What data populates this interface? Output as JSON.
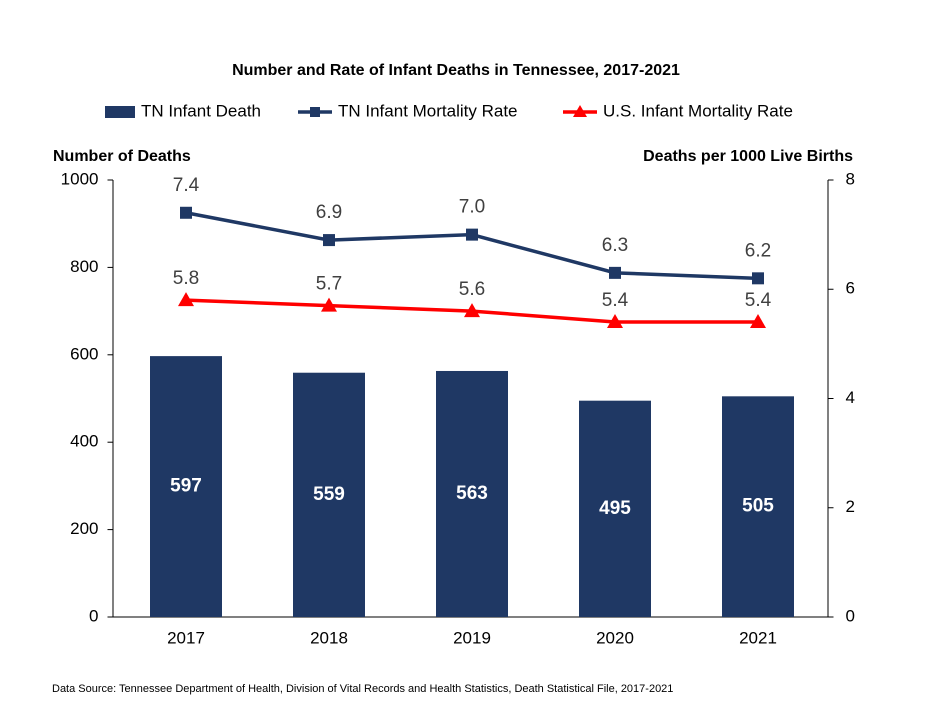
{
  "chart_data": {
    "type": "combo",
    "title": "Number and Rate of Infant Deaths in Tennessee, 2017-2021",
    "y_label": "Number of Deaths",
    "y2_label": "Deaths per 1000 Live Births",
    "source": "Data Source: Tennessee Department of Health, Division of Vital Records and Health Statistics, Death Statistical File, 2017-2021",
    "categories": [
      "2017",
      "2018",
      "2019",
      "2020",
      "2021"
    ],
    "series": [
      {
        "name": "TN Infant Death",
        "type": "bar",
        "color": "#1f3864",
        "values": [
          597,
          559,
          563,
          495,
          505
        ]
      },
      {
        "name": "TN Infant Mortality Rate",
        "type": "line",
        "axis": "y2",
        "marker": "square",
        "color": "#1f3864",
        "values": [
          7.4,
          6.9,
          7.0,
          6.3,
          6.2
        ],
        "value_labels": [
          "7.4",
          "6.9",
          "7.0",
          "6.3",
          "6.2"
        ]
      },
      {
        "name": "U.S. Infant Mortality Rate",
        "type": "line",
        "axis": "y2",
        "marker": "triangle",
        "color": "#ff0000",
        "values": [
          5.8,
          5.7,
          5.6,
          5.4,
          5.4
        ],
        "value_labels": [
          "5.8",
          "5.7",
          "5.6",
          "5.4",
          "5.4"
        ]
      }
    ],
    "ylim": [
      0,
      1000
    ],
    "yticks": [
      0,
      200,
      400,
      600,
      800,
      1000
    ],
    "y2lim": [
      0,
      8
    ],
    "y2ticks": [
      0,
      2,
      4,
      6,
      8
    ],
    "grid": false,
    "legend": "top"
  }
}
